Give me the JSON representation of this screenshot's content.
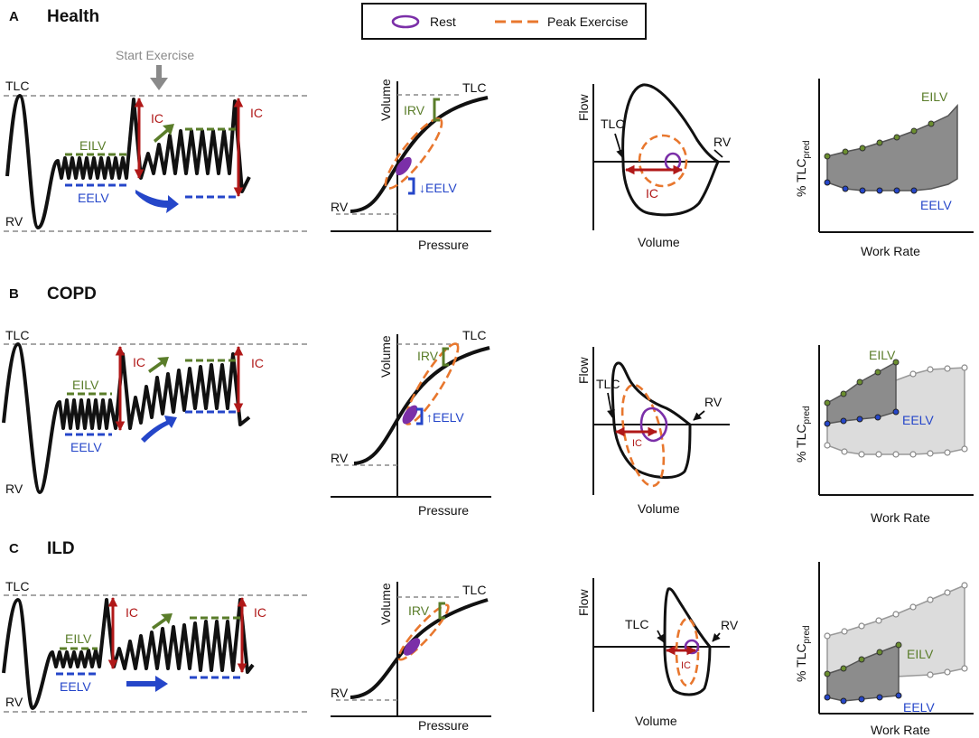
{
  "legend": {
    "rest_label": "Rest",
    "peak_label": "Peak Exercise",
    "rest_color": "#7b2fa8",
    "peak_color": "#e8772e"
  },
  "labels": {
    "tlc": "TLC",
    "rv": "RV",
    "ic": "IC",
    "eilv": "EILV",
    "eelv": "EELV",
    "irv": "IRV",
    "eelv_down": "↓EELV",
    "eelv_up": "↑EELV",
    "start_exercise": "Start Exercise",
    "volume": "Volume",
    "pressure": "Pressure",
    "flow": "Flow",
    "work_rate": "Work Rate",
    "tlc_pred_main": "% TLC",
    "tlc_pred_sub": "pred"
  },
  "panels": [
    {
      "letter": "A",
      "title": "Health"
    },
    {
      "letter": "B",
      "title": "COPD"
    },
    {
      "letter": "C",
      "title": "ILD"
    }
  ],
  "colors": {
    "green": "#5a7d2a",
    "blue": "#2546c9",
    "red": "#b01818",
    "gray": "#8a8a8a",
    "dark_fill": "#8c8c8c",
    "light_fill": "#dcdcdc"
  }
}
